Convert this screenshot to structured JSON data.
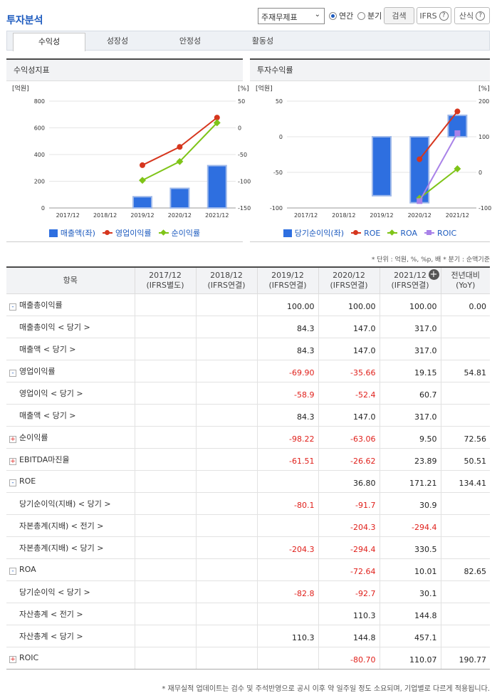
{
  "header": {
    "title": "투자분석",
    "select_value": "주재무제표",
    "radio_annual": "연간",
    "radio_quarter": "분기",
    "search": "검색",
    "ifrs": "IFRS",
    "formula": "산식",
    "qmark": "?"
  },
  "tabs": [
    {
      "label": "수익성",
      "active": true
    },
    {
      "label": "성장성",
      "active": false
    },
    {
      "label": "안정성",
      "active": false
    },
    {
      "label": "활동성",
      "active": false
    }
  ],
  "charts": {
    "left_title": "수익성지표",
    "right_title": "투자수익률"
  },
  "chart_data": [
    {
      "type": "bar",
      "title": "수익성지표",
      "categories": [
        "2017/12",
        "2018/12",
        "2019/12",
        "2020/12",
        "2021/12"
      ],
      "left_unit": "[억원]",
      "right_unit": "[%]",
      "left_ticks": [
        "800",
        "600",
        "400",
        "200",
        "0"
      ],
      "right_ticks": [
        "50",
        "0",
        "-50",
        "-100",
        "-150"
      ],
      "ylim_left": [
        0,
        800
      ],
      "ylim_right": [
        -150,
        50
      ],
      "series": [
        {
          "name": "매출액(좌)",
          "kind": "bar",
          "axis": "left",
          "color": "#2e6fe0",
          "values": [
            null,
            null,
            84.3,
            147.0,
            317.0
          ]
        },
        {
          "name": "영업이익률",
          "kind": "line",
          "axis": "right",
          "color": "#d6361e",
          "marker": "circle",
          "values": [
            null,
            null,
            -69.9,
            -35.66,
            19.15
          ]
        },
        {
          "name": "순이익률",
          "kind": "line",
          "axis": "right",
          "color": "#7fc418",
          "marker": "diamond",
          "values": [
            null,
            null,
            -98.22,
            -63.06,
            9.5
          ]
        }
      ]
    },
    {
      "type": "bar",
      "title": "투자수익률",
      "categories": [
        "2017/12",
        "2018/12",
        "2019/12",
        "2020/12",
        "2021/12"
      ],
      "left_unit": "[억원]",
      "right_unit": "[%]",
      "left_ticks": [
        "50",
        "0",
        "-50",
        "-100"
      ],
      "right_ticks": [
        "200",
        "100",
        "0",
        "-100"
      ],
      "ylim_left": [
        -100,
        50
      ],
      "ylim_right": [
        -100,
        200
      ],
      "series": [
        {
          "name": "당기순이익(좌)",
          "kind": "bar",
          "axis": "left",
          "color": "#2e6fe0",
          "values": [
            null,
            null,
            -82.8,
            -92.7,
            30.1
          ]
        },
        {
          "name": "ROE",
          "kind": "line",
          "axis": "right",
          "color": "#d6361e",
          "marker": "circle",
          "values": [
            null,
            null,
            null,
            36.8,
            171.21
          ]
        },
        {
          "name": "ROA",
          "kind": "line",
          "axis": "right",
          "color": "#7fc418",
          "marker": "diamond",
          "values": [
            null,
            null,
            null,
            -72.64,
            10.01
          ]
        },
        {
          "name": "ROIC",
          "kind": "line",
          "axis": "right",
          "color": "#a982e8",
          "marker": "square",
          "values": [
            null,
            null,
            null,
            -80.7,
            110.07
          ]
        }
      ]
    }
  ],
  "note_unit": "* 단위 : 억원, %, %p, 배   * 분기 : 순액기준",
  "table": {
    "head_item": "항목",
    "columns": [
      {
        "year": "2017/12",
        "basis": "(IFRS별도)"
      },
      {
        "year": "2018/12",
        "basis": "(IFRS연결)"
      },
      {
        "year": "2019/12",
        "basis": "(IFRS연결)"
      },
      {
        "year": "2020/12",
        "basis": "(IFRS연결)"
      },
      {
        "year": "2021/12",
        "basis": "(IFRS연결)"
      }
    ],
    "yoy": {
      "line1": "전년대비",
      "line2": "(YoY)"
    },
    "add_col": "+",
    "rows": [
      {
        "label": "매출총이익률",
        "toggle": "-",
        "sub": false,
        "values": [
          "",
          "",
          "100.00",
          "100.00",
          "100.00",
          "0.00"
        ]
      },
      {
        "label": "매출총이익 < 당기 >",
        "toggle": "",
        "sub": true,
        "values": [
          "",
          "",
          "84.3",
          "147.0",
          "317.0",
          ""
        ]
      },
      {
        "label": "매출액 < 당기 >",
        "toggle": "",
        "sub": true,
        "values": [
          "",
          "",
          "84.3",
          "147.0",
          "317.0",
          ""
        ]
      },
      {
        "label": "영업이익률",
        "toggle": "-",
        "sub": false,
        "values": [
          "",
          "",
          "-69.90",
          "-35.66",
          "19.15",
          "54.81"
        ]
      },
      {
        "label": "영업이익 < 당기 >",
        "toggle": "",
        "sub": true,
        "values": [
          "",
          "",
          "-58.9",
          "-52.4",
          "60.7",
          ""
        ]
      },
      {
        "label": "매출액 < 당기 >",
        "toggle": "",
        "sub": true,
        "values": [
          "",
          "",
          "84.3",
          "147.0",
          "317.0",
          ""
        ]
      },
      {
        "label": "순이익률",
        "toggle": "+",
        "sub": false,
        "values": [
          "",
          "",
          "-98.22",
          "-63.06",
          "9.50",
          "72.56"
        ]
      },
      {
        "label": "EBITDA마진율",
        "toggle": "+",
        "sub": false,
        "values": [
          "",
          "",
          "-61.51",
          "-26.62",
          "23.89",
          "50.51"
        ]
      },
      {
        "label": "ROE",
        "toggle": "-",
        "sub": false,
        "values": [
          "",
          "",
          "",
          "36.80",
          "171.21",
          "134.41"
        ]
      },
      {
        "label": "당기순이익(지배) < 당기 >",
        "toggle": "",
        "sub": true,
        "values": [
          "",
          "",
          "-80.1",
          "-91.7",
          "30.9",
          ""
        ]
      },
      {
        "label": "자본총계(지배) < 전기 >",
        "toggle": "",
        "sub": true,
        "values": [
          "",
          "",
          "",
          "-204.3",
          "-294.4",
          ""
        ]
      },
      {
        "label": "자본총계(지배) < 당기 >",
        "toggle": "",
        "sub": true,
        "values": [
          "",
          "",
          "-204.3",
          "-294.4",
          "330.5",
          ""
        ]
      },
      {
        "label": "ROA",
        "toggle": "-",
        "sub": false,
        "values": [
          "",
          "",
          "",
          "-72.64",
          "10.01",
          "82.65"
        ]
      },
      {
        "label": "당기순이익 < 당기 >",
        "toggle": "",
        "sub": true,
        "values": [
          "",
          "",
          "-82.8",
          "-92.7",
          "30.1",
          ""
        ]
      },
      {
        "label": "자산총계 < 전기 >",
        "toggle": "",
        "sub": true,
        "values": [
          "",
          "",
          "",
          "110.3",
          "144.8",
          ""
        ]
      },
      {
        "label": "자산총계 < 당기 >",
        "toggle": "",
        "sub": true,
        "values": [
          "",
          "",
          "110.3",
          "144.8",
          "457.1",
          ""
        ]
      },
      {
        "label": "ROIC",
        "toggle": "+",
        "sub": false,
        "values": [
          "",
          "",
          "",
          "-80.70",
          "110.07",
          "190.77"
        ]
      }
    ]
  },
  "note_footer": "* 재무실적 업데이트는 검수 및 주석반영으로 공시 이후 약 일주일 정도 소요되며, 기업별로 다르게 적용됩니다."
}
